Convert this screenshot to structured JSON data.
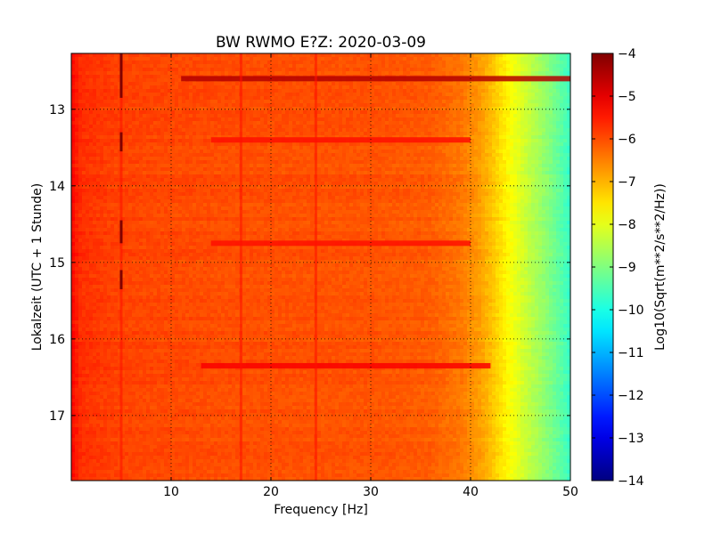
{
  "chart_data": {
    "type": "heatmap",
    "title": "BW RWMO E?Z: 2020-03-09",
    "xlabel": "Frequency [Hz]",
    "ylabel": "Lokalzeit (UTC + 1 Stunde)",
    "xlim": [
      0,
      50
    ],
    "ylim": [
      12.27,
      17.85
    ],
    "y_inverted": true,
    "grid": true,
    "x_ticks": [
      10,
      20,
      30,
      40,
      50
    ],
    "y_ticks": [
      13,
      14,
      15,
      16,
      17
    ],
    "colorbar": {
      "label": "Log10(Sqrt(m**2/s**2/Hz))",
      "colormap": "jet",
      "vmin": -14,
      "vmax": -4,
      "ticks": [
        -4,
        -5,
        -6,
        -7,
        -8,
        -9,
        -10,
        -11,
        -12,
        -13,
        -14
      ],
      "placement": "right"
    },
    "spectrum_profile": {
      "description_frequency_hz": [
        0,
        1,
        5,
        15,
        30,
        36,
        39,
        41,
        42,
        43,
        44,
        45,
        46,
        47,
        48,
        49,
        50
      ],
      "description_log_psd": [
        -5.3,
        -5.7,
        -5.9,
        -6.0,
        -6.05,
        -6.15,
        -6.4,
        -6.8,
        -7.1,
        -7.45,
        -7.8,
        -8.1,
        -8.4,
        -8.7,
        -9.0,
        -9.35,
        -9.7
      ]
    },
    "strong_horizontal_bands": [
      {
        "time": 12.6,
        "f_start_hz": 11,
        "f_end_hz": 50,
        "log_psd": -4.5
      },
      {
        "time": 13.4,
        "f_start_hz": 14,
        "f_end_hz": 40,
        "log_psd": -5.4
      },
      {
        "time": 14.75,
        "f_start_hz": 14,
        "f_end_hz": 40,
        "log_psd": -5.4
      },
      {
        "time": 16.35,
        "f_start_hz": 13,
        "f_end_hz": 42,
        "log_psd": -5.2
      }
    ],
    "vertical_lines_hz": [
      5,
      17,
      24.5
    ],
    "short_bursts": [
      {
        "f_hz": 5,
        "t_start": 12.27,
        "t_end": 12.85
      },
      {
        "f_hz": 5,
        "t_start": 13.3,
        "t_end": 13.55
      },
      {
        "f_hz": 5,
        "t_start": 14.45,
        "t_end": 14.75
      },
      {
        "f_hz": 5,
        "t_start": 15.1,
        "t_end": 15.35
      }
    ]
  }
}
